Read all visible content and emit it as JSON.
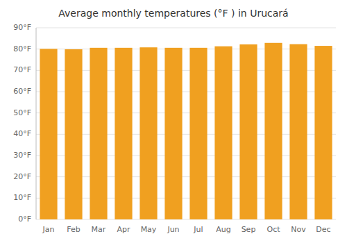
{
  "chart_data": {
    "type": "bar",
    "title": "Average monthly temperatures (°F ) in Urucará",
    "categories": [
      "Jan",
      "Feb",
      "Mar",
      "Apr",
      "May",
      "Jun",
      "Jul",
      "Aug",
      "Sep",
      "Oct",
      "Nov",
      "Dec"
    ],
    "values": [
      80.1,
      79.9,
      80.6,
      80.6,
      80.8,
      80.6,
      80.6,
      81.3,
      82.2,
      82.9,
      82.3,
      81.5
    ],
    "color": "#F0A020",
    "ylim": [
      0,
      90
    ],
    "yticks": [
      {
        "value": 0,
        "label": "0°F"
      },
      {
        "value": 10,
        "label": "10°F"
      },
      {
        "value": 20,
        "label": "20°F"
      },
      {
        "value": 30,
        "label": "30°F"
      },
      {
        "value": 40,
        "label": "40°F"
      },
      {
        "value": 50,
        "label": "50°F"
      },
      {
        "value": 60,
        "label": "60°F"
      },
      {
        "value": 70,
        "label": "70°F"
      },
      {
        "value": 80,
        "label": "80°F"
      },
      {
        "value": 90,
        "label": "90°F"
      }
    ],
    "grid": true
  }
}
